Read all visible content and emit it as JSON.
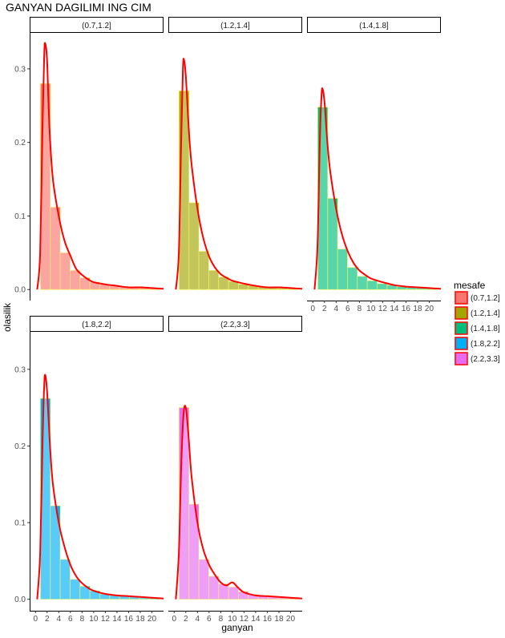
{
  "chart_data": {
    "type": "bar",
    "title": "GANYAN DAGILIMI ING CIM",
    "xlabel": "ganyan",
    "ylabel": "olasilik",
    "x_ticks": [
      0,
      2,
      4,
      6,
      8,
      10,
      12,
      14,
      16,
      18,
      20
    ],
    "y_ticks": [
      0.0,
      0.1,
      0.2,
      0.3
    ],
    "y_tick_labels": [
      "0.0",
      "0.1",
      "0.2",
      "0.3"
    ],
    "xlim": [
      -1,
      22
    ],
    "ylim": [
      -0.015,
      0.35
    ],
    "bin_width": 1.7,
    "bin_centers": [
      1.7,
      3.4,
      5.1,
      6.8,
      8.5,
      10.2,
      11.9,
      13.6,
      15.3,
      17.0,
      18.7,
      20.4
    ],
    "legend_title": "mesafe",
    "panels": [
      {
        "label": "(0.7,1.2]",
        "color": "#F8766D",
        "bars": [
          0.28,
          0.112,
          0.05,
          0.026,
          0.016,
          0.01,
          0.007,
          0.005,
          0.004,
          0.003,
          0.002,
          0.002
        ],
        "density": [
          [
            0.3,
            0.0
          ],
          [
            0.8,
            0.05
          ],
          [
            1.2,
            0.22
          ],
          [
            1.5,
            0.32
          ],
          [
            1.7,
            0.334
          ],
          [
            2.0,
            0.31
          ],
          [
            2.4,
            0.22
          ],
          [
            3.0,
            0.15
          ],
          [
            4.0,
            0.1
          ],
          [
            5.0,
            0.066
          ],
          [
            6.0,
            0.046
          ],
          [
            7.0,
            0.028
          ],
          [
            8.0,
            0.02
          ],
          [
            9.0,
            0.014
          ],
          [
            10.0,
            0.01
          ],
          [
            12.0,
            0.007
          ],
          [
            14.0,
            0.005
          ],
          [
            16.0,
            0.003
          ],
          [
            18.0,
            0.003
          ],
          [
            20.0,
            0.002
          ],
          [
            22.0,
            0.001
          ]
        ]
      },
      {
        "label": "(1.2,1.4]",
        "color": "#A3A500",
        "bars": [
          0.27,
          0.118,
          0.052,
          0.026,
          0.017,
          0.011,
          0.007,
          0.005,
          0.004,
          0.003,
          0.002,
          0.002
        ],
        "density": [
          [
            0.3,
            0.0
          ],
          [
            0.8,
            0.05
          ],
          [
            1.2,
            0.2
          ],
          [
            1.5,
            0.3
          ],
          [
            1.7,
            0.312
          ],
          [
            2.0,
            0.29
          ],
          [
            2.5,
            0.22
          ],
          [
            3.0,
            0.17
          ],
          [
            4.0,
            0.11
          ],
          [
            5.0,
            0.07
          ],
          [
            6.0,
            0.045
          ],
          [
            7.0,
            0.03
          ],
          [
            8.0,
            0.021
          ],
          [
            9.0,
            0.016
          ],
          [
            10.0,
            0.012
          ],
          [
            12.0,
            0.008
          ],
          [
            14.0,
            0.005
          ],
          [
            16.0,
            0.003
          ],
          [
            18.0,
            0.003
          ],
          [
            20.0,
            0.002
          ],
          [
            22.0,
            0.001
          ]
        ]
      },
      {
        "label": "(1.4,1.8]",
        "color": "#00BF7D",
        "bars": [
          0.248,
          0.124,
          0.055,
          0.03,
          0.018,
          0.012,
          0.008,
          0.006,
          0.004,
          0.003,
          0.003,
          0.002
        ],
        "density": [
          [
            0.3,
            0.0
          ],
          [
            0.8,
            0.06
          ],
          [
            1.2,
            0.2
          ],
          [
            1.5,
            0.265
          ],
          [
            1.7,
            0.272
          ],
          [
            2.0,
            0.255
          ],
          [
            2.5,
            0.2
          ],
          [
            3.0,
            0.16
          ],
          [
            4.0,
            0.11
          ],
          [
            5.0,
            0.075
          ],
          [
            6.0,
            0.052
          ],
          [
            7.0,
            0.036
          ],
          [
            8.0,
            0.026
          ],
          [
            9.0,
            0.02
          ],
          [
            10.0,
            0.015
          ],
          [
            12.0,
            0.01
          ],
          [
            14.0,
            0.006
          ],
          [
            16.0,
            0.004
          ],
          [
            18.0,
            0.003
          ],
          [
            20.0,
            0.002
          ],
          [
            22.0,
            0.001
          ]
        ]
      },
      {
        "label": "(1.8,2.2]",
        "color": "#00B0F6",
        "bars": [
          0.262,
          0.122,
          0.052,
          0.026,
          0.017,
          0.011,
          0.007,
          0.005,
          0.004,
          0.003,
          0.002,
          0.002
        ],
        "density": [
          [
            0.3,
            0.0
          ],
          [
            0.8,
            0.06
          ],
          [
            1.2,
            0.2
          ],
          [
            1.5,
            0.28
          ],
          [
            1.7,
            0.292
          ],
          [
            2.0,
            0.27
          ],
          [
            2.5,
            0.2
          ],
          [
            3.0,
            0.15
          ],
          [
            4.0,
            0.1
          ],
          [
            5.0,
            0.068
          ],
          [
            6.0,
            0.045
          ],
          [
            7.0,
            0.03
          ],
          [
            8.0,
            0.021
          ],
          [
            9.0,
            0.015
          ],
          [
            10.0,
            0.011
          ],
          [
            12.0,
            0.007
          ],
          [
            14.0,
            0.005
          ],
          [
            16.0,
            0.004
          ],
          [
            18.0,
            0.003
          ],
          [
            20.0,
            0.002
          ],
          [
            22.0,
            0.001
          ]
        ]
      },
      {
        "label": "(2.2,3.3]",
        "color": "#E76BF3",
        "bars": [
          0.25,
          0.124,
          0.052,
          0.03,
          0.02,
          0.016,
          0.01,
          0.006,
          0.004,
          0.003,
          0.002,
          0.002
        ],
        "density": [
          [
            0.3,
            0.0
          ],
          [
            0.8,
            0.06
          ],
          [
            1.2,
            0.17
          ],
          [
            1.6,
            0.24
          ],
          [
            2.0,
            0.25
          ],
          [
            2.5,
            0.21
          ],
          [
            3.0,
            0.16
          ],
          [
            4.0,
            0.1
          ],
          [
            5.0,
            0.065
          ],
          [
            6.0,
            0.045
          ],
          [
            7.0,
            0.032
          ],
          [
            8.0,
            0.022
          ],
          [
            9.0,
            0.018
          ],
          [
            10.0,
            0.022
          ],
          [
            11.0,
            0.015
          ],
          [
            12.0,
            0.009
          ],
          [
            14.0,
            0.005
          ],
          [
            16.0,
            0.004
          ],
          [
            18.0,
            0.003
          ],
          [
            20.0,
            0.002
          ],
          [
            22.0,
            0.001
          ]
        ]
      }
    ],
    "density_color": "#ff0000",
    "bar_outline_color": "#ffff00",
    "legend_outline_color": "#ff0000",
    "grid": false
  }
}
